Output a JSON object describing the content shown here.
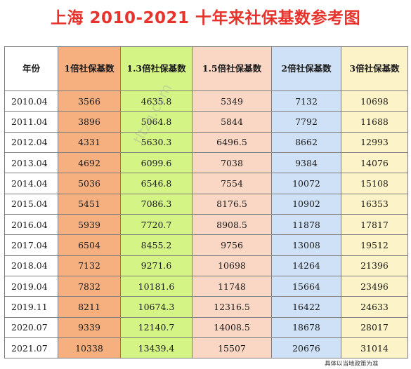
{
  "title": "上海 2010-2021 十年来社保基数参考图",
  "headers": [
    "年份",
    "1倍社保基数",
    "1.3倍社保基数",
    "1.5倍社保基数",
    "2倍社保基数",
    "3倍社保基数"
  ],
  "rows": [
    [
      "2010.04",
      "3566",
      "4635.8",
      "5349",
      "7132",
      "10698"
    ],
    [
      "2011.04",
      "3896",
      "5064.8",
      "5844",
      "7792",
      "11688"
    ],
    [
      "2012.04",
      "4331",
      "5630.3",
      "6496.5",
      "8662",
      "12993"
    ],
    [
      "2013.04",
      "4692",
      "6099.6",
      "7038",
      "9384",
      "14076"
    ],
    [
      "2014.04",
      "5036",
      "6546.8",
      "7554",
      "10072",
      "15108"
    ],
    [
      "2015.04",
      "5451",
      "7086.3",
      "8176.5",
      "10902",
      "16353"
    ],
    [
      "2016.04",
      "5939",
      "7720.7",
      "8908.5",
      "11878",
      "17817"
    ],
    [
      "2017.04",
      "6504",
      "8455.2",
      "9756",
      "13008",
      "19512"
    ],
    [
      "2018.04",
      "7132",
      "9271.6",
      "10698",
      "14264",
      "21396"
    ],
    [
      "2019.04",
      "7832",
      "10181.6",
      "11748",
      "15664",
      "23496"
    ],
    [
      "2019.11",
      "8211",
      "10674.3",
      "12316.5",
      "16422",
      "24633"
    ],
    [
      "2020.07",
      "9339",
      "12140.7",
      "14008.5",
      "18678",
      "28017"
    ],
    [
      "2021.07",
      "10338",
      "13439.4",
      "15507",
      "20676",
      "31014"
    ]
  ],
  "note": "具体以当地政策为准",
  "watermark": "tltzg.com",
  "colors": {
    "title": "#e8322c",
    "col_1x": "#f6b07f",
    "col_1_3x": "#d4f486",
    "col_1_5x": "#fad6c4",
    "col_2x": "#cfe1f6",
    "col_3x": "#fdf3c8"
  }
}
